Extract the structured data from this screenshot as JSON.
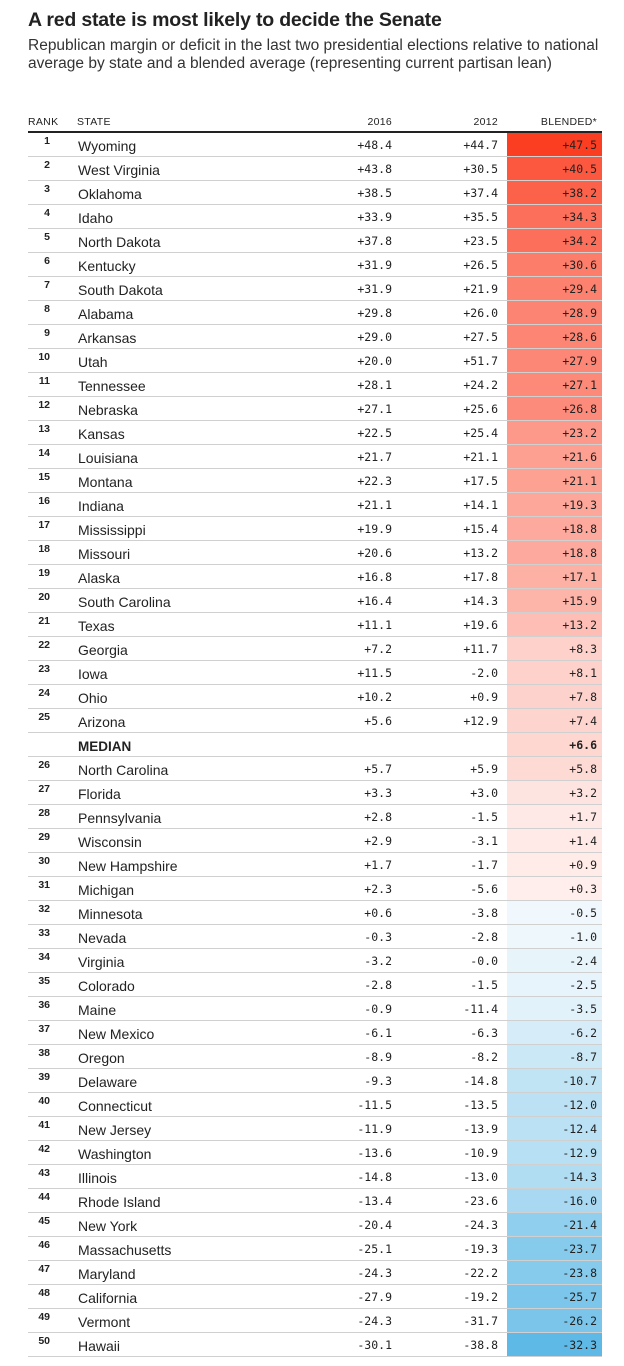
{
  "title": "A red state is most likely to decide the Senate",
  "subtitle": "Republican margin or deficit in the last two presidential elections relative to national average by state and a blended average (representing current partisan lean)",
  "columns": {
    "rank": "RANK",
    "state": "STATE",
    "y2016": "2016",
    "y2012": "2012",
    "blended": "BLENDED*"
  },
  "colors": {
    "red_max": "#fb3e22",
    "blue_max": "#5fb9e6",
    "neutral": "#ffffff"
  },
  "chart_data": {
    "type": "table",
    "columns": [
      "RANK",
      "STATE",
      "2016",
      "2012",
      "BLENDED*"
    ],
    "rows": [
      {
        "rank": "1",
        "state": "Wyoming",
        "y2016": "+48.4",
        "y2012": "+44.7",
        "blended": "+47.5",
        "value": 47.5
      },
      {
        "rank": "2",
        "state": "West Virginia",
        "y2016": "+43.8",
        "y2012": "+30.5",
        "blended": "+40.5",
        "value": 40.5
      },
      {
        "rank": "3",
        "state": "Oklahoma",
        "y2016": "+38.5",
        "y2012": "+37.4",
        "blended": "+38.2",
        "value": 38.2
      },
      {
        "rank": "4",
        "state": "Idaho",
        "y2016": "+33.9",
        "y2012": "+35.5",
        "blended": "+34.3",
        "value": 34.3
      },
      {
        "rank": "5",
        "state": "North Dakota",
        "y2016": "+37.8",
        "y2012": "+23.5",
        "blended": "+34.2",
        "value": 34.2
      },
      {
        "rank": "6",
        "state": "Kentucky",
        "y2016": "+31.9",
        "y2012": "+26.5",
        "blended": "+30.6",
        "value": 30.6
      },
      {
        "rank": "7",
        "state": "South Dakota",
        "y2016": "+31.9",
        "y2012": "+21.9",
        "blended": "+29.4",
        "value": 29.4
      },
      {
        "rank": "8",
        "state": "Alabama",
        "y2016": "+29.8",
        "y2012": "+26.0",
        "blended": "+28.9",
        "value": 28.9
      },
      {
        "rank": "9",
        "state": "Arkansas",
        "y2016": "+29.0",
        "y2012": "+27.5",
        "blended": "+28.6",
        "value": 28.6
      },
      {
        "rank": "10",
        "state": "Utah",
        "y2016": "+20.0",
        "y2012": "+51.7",
        "blended": "+27.9",
        "value": 27.9
      },
      {
        "rank": "11",
        "state": "Tennessee",
        "y2016": "+28.1",
        "y2012": "+24.2",
        "blended": "+27.1",
        "value": 27.1
      },
      {
        "rank": "12",
        "state": "Nebraska",
        "y2016": "+27.1",
        "y2012": "+25.6",
        "blended": "+26.8",
        "value": 26.8
      },
      {
        "rank": "13",
        "state": "Kansas",
        "y2016": "+22.5",
        "y2012": "+25.4",
        "blended": "+23.2",
        "value": 23.2
      },
      {
        "rank": "14",
        "state": "Louisiana",
        "y2016": "+21.7",
        "y2012": "+21.1",
        "blended": "+21.6",
        "value": 21.6
      },
      {
        "rank": "15",
        "state": "Montana",
        "y2016": "+22.3",
        "y2012": "+17.5",
        "blended": "+21.1",
        "value": 21.1
      },
      {
        "rank": "16",
        "state": "Indiana",
        "y2016": "+21.1",
        "y2012": "+14.1",
        "blended": "+19.3",
        "value": 19.3
      },
      {
        "rank": "17",
        "state": "Mississippi",
        "y2016": "+19.9",
        "y2012": "+15.4",
        "blended": "+18.8",
        "value": 18.8
      },
      {
        "rank": "18",
        "state": "Missouri",
        "y2016": "+20.6",
        "y2012": "+13.2",
        "blended": "+18.8",
        "value": 18.8
      },
      {
        "rank": "19",
        "state": "Alaska",
        "y2016": "+16.8",
        "y2012": "+17.8",
        "blended": "+17.1",
        "value": 17.1
      },
      {
        "rank": "20",
        "state": "South Carolina",
        "y2016": "+16.4",
        "y2012": "+14.3",
        "blended": "+15.9",
        "value": 15.9
      },
      {
        "rank": "21",
        "state": "Texas",
        "y2016": "+11.1",
        "y2012": "+19.6",
        "blended": "+13.2",
        "value": 13.2
      },
      {
        "rank": "22",
        "state": "Georgia",
        "y2016": "+7.2",
        "y2012": "+11.7",
        "blended": "+8.3",
        "value": 8.3
      },
      {
        "rank": "23",
        "state": "Iowa",
        "y2016": "+11.5",
        "y2012": "-2.0",
        "blended": "+8.1",
        "value": 8.1
      },
      {
        "rank": "24",
        "state": "Ohio",
        "y2016": "+10.2",
        "y2012": "+0.9",
        "blended": "+7.8",
        "value": 7.8
      },
      {
        "rank": "25",
        "state": "Arizona",
        "y2016": "+5.6",
        "y2012": "+12.9",
        "blended": "+7.4",
        "value": 7.4
      },
      {
        "rank": "",
        "state": "MEDIAN",
        "y2016": "",
        "y2012": "",
        "blended": "+6.6",
        "value": 6.6,
        "median": true
      },
      {
        "rank": "26",
        "state": "North Carolina",
        "y2016": "+5.7",
        "y2012": "+5.9",
        "blended": "+5.8",
        "value": 5.8
      },
      {
        "rank": "27",
        "state": "Florida",
        "y2016": "+3.3",
        "y2012": "+3.0",
        "blended": "+3.2",
        "value": 3.2
      },
      {
        "rank": "28",
        "state": "Pennsylvania",
        "y2016": "+2.8",
        "y2012": "-1.5",
        "blended": "+1.7",
        "value": 1.7
      },
      {
        "rank": "29",
        "state": "Wisconsin",
        "y2016": "+2.9",
        "y2012": "-3.1",
        "blended": "+1.4",
        "value": 1.4
      },
      {
        "rank": "30",
        "state": "New Hampshire",
        "y2016": "+1.7",
        "y2012": "-1.7",
        "blended": "+0.9",
        "value": 0.9
      },
      {
        "rank": "31",
        "state": "Michigan",
        "y2016": "+2.3",
        "y2012": "-5.6",
        "blended": "+0.3",
        "value": 0.3
      },
      {
        "rank": "32",
        "state": "Minnesota",
        "y2016": "+0.6",
        "y2012": "-3.8",
        "blended": "-0.5",
        "value": -0.5
      },
      {
        "rank": "33",
        "state": "Nevada",
        "y2016": "-0.3",
        "y2012": "-2.8",
        "blended": "-1.0",
        "value": -1.0
      },
      {
        "rank": "34",
        "state": "Virginia",
        "y2016": "-3.2",
        "y2012": "-0.0",
        "blended": "-2.4",
        "value": -2.4
      },
      {
        "rank": "35",
        "state": "Colorado",
        "y2016": "-2.8",
        "y2012": "-1.5",
        "blended": "-2.5",
        "value": -2.5
      },
      {
        "rank": "36",
        "state": "Maine",
        "y2016": "-0.9",
        "y2012": "-11.4",
        "blended": "-3.5",
        "value": -3.5
      },
      {
        "rank": "37",
        "state": "New Mexico",
        "y2016": "-6.1",
        "y2012": "-6.3",
        "blended": "-6.2",
        "value": -6.2
      },
      {
        "rank": "38",
        "state": "Oregon",
        "y2016": "-8.9",
        "y2012": "-8.2",
        "blended": "-8.7",
        "value": -8.7
      },
      {
        "rank": "39",
        "state": "Delaware",
        "y2016": "-9.3",
        "y2012": "-14.8",
        "blended": "-10.7",
        "value": -10.7
      },
      {
        "rank": "40",
        "state": "Connecticut",
        "y2016": "-11.5",
        "y2012": "-13.5",
        "blended": "-12.0",
        "value": -12.0
      },
      {
        "rank": "41",
        "state": "New Jersey",
        "y2016": "-11.9",
        "y2012": "-13.9",
        "blended": "-12.4",
        "value": -12.4
      },
      {
        "rank": "42",
        "state": "Washington",
        "y2016": "-13.6",
        "y2012": "-10.9",
        "blended": "-12.9",
        "value": -12.9
      },
      {
        "rank": "43",
        "state": "Illinois",
        "y2016": "-14.8",
        "y2012": "-13.0",
        "blended": "-14.3",
        "value": -14.3
      },
      {
        "rank": "44",
        "state": "Rhode Island",
        "y2016": "-13.4",
        "y2012": "-23.6",
        "blended": "-16.0",
        "value": -16.0
      },
      {
        "rank": "45",
        "state": "New York",
        "y2016": "-20.4",
        "y2012": "-24.3",
        "blended": "-21.4",
        "value": -21.4
      },
      {
        "rank": "46",
        "state": "Massachusetts",
        "y2016": "-25.1",
        "y2012": "-19.3",
        "blended": "-23.7",
        "value": -23.7
      },
      {
        "rank": "47",
        "state": "Maryland",
        "y2016": "-24.3",
        "y2012": "-22.2",
        "blended": "-23.8",
        "value": -23.8
      },
      {
        "rank": "48",
        "state": "California",
        "y2016": "-27.9",
        "y2012": "-19.2",
        "blended": "-25.7",
        "value": -25.7
      },
      {
        "rank": "49",
        "state": "Vermont",
        "y2016": "-24.3",
        "y2012": "-31.7",
        "blended": "-26.2",
        "value": -26.2
      },
      {
        "rank": "50",
        "state": "Hawaii",
        "y2016": "-30.1",
        "y2012": "-38.8",
        "blended": "-32.3",
        "value": -32.3
      }
    ]
  }
}
